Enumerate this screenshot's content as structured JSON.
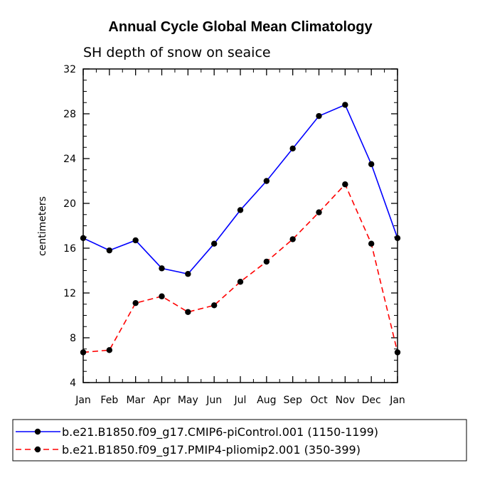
{
  "chart_data": {
    "type": "line",
    "title": "Annual Cycle Global Mean Climatology",
    "subtitle": "SH depth of snow on seaice",
    "xlabel": "",
    "ylabel": "centimeters",
    "categories": [
      "Jan",
      "Feb",
      "Mar",
      "Apr",
      "May",
      "Jun",
      "Jul",
      "Aug",
      "Sep",
      "Oct",
      "Nov",
      "Dec",
      "Jan"
    ],
    "ylim": [
      4,
      32
    ],
    "yticks": [
      "4",
      "8",
      "12",
      "16",
      "20",
      "24",
      "28",
      "32"
    ],
    "series": [
      {
        "name": "b.e21.B1850.f09_g17.CMIP6-piControl.001 (1150-1199)",
        "color": "#0000ff",
        "dash": "solid",
        "values": [
          16.9,
          15.8,
          16.7,
          14.2,
          13.7,
          16.4,
          19.4,
          22.0,
          24.9,
          27.8,
          28.8,
          23.5,
          16.9
        ]
      },
      {
        "name": "b.e21.B1850.f09_g17.PMIP4-pliomip2.001 (350-399)",
        "color": "#ff0000",
        "dash": "dashed",
        "values": [
          6.7,
          6.9,
          11.1,
          11.7,
          10.3,
          10.9,
          13.0,
          14.8,
          16.8,
          19.2,
          21.7,
          16.4,
          6.7
        ]
      }
    ],
    "grid": false,
    "legend_position": "bottom"
  }
}
